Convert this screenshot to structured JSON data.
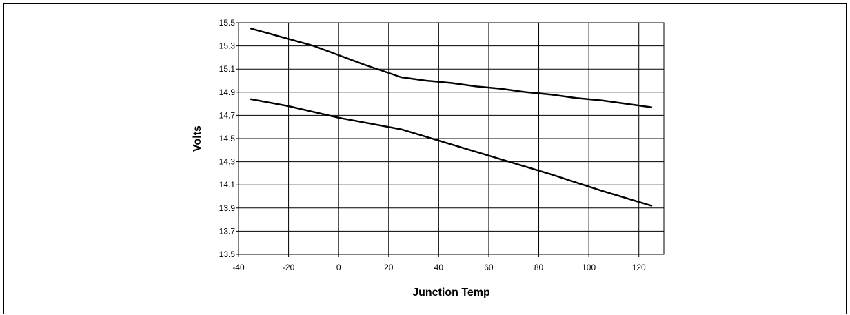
{
  "chart_data": {
    "type": "line",
    "title": "",
    "xlabel": "Junction Temp",
    "ylabel": "Volts",
    "xlim": [
      -40,
      130
    ],
    "ylim": [
      13.5,
      15.5
    ],
    "x_ticks": [
      "-40",
      "-20",
      "0",
      "20",
      "40",
      "60",
      "80",
      "100",
      "120"
    ],
    "y_ticks": [
      "13.5",
      "13.7",
      "13.9",
      "14.1",
      "14.3",
      "14.5",
      "14.7",
      "14.9",
      "15.1",
      "15.3",
      "15.5"
    ],
    "grid": true,
    "legend": false,
    "colors": {
      "line": "#000000",
      "grid": "#000000",
      "background": "#ffffff"
    },
    "series": [
      {
        "x": [
          -35,
          -10,
          0,
          10,
          25,
          35,
          45,
          55,
          65,
          75,
          85,
          95,
          105,
          115,
          125
        ],
        "y": [
          15.45,
          15.3,
          15.22,
          15.14,
          15.03,
          15.0,
          14.98,
          14.95,
          14.93,
          14.9,
          14.88,
          14.85,
          14.83,
          14.8,
          14.77
        ]
      },
      {
        "x": [
          -35,
          -20,
          0,
          25,
          45,
          65,
          85,
          105,
          125
        ],
        "y": [
          14.84,
          14.78,
          14.68,
          14.58,
          14.45,
          14.32,
          14.19,
          14.05,
          13.92
        ]
      }
    ]
  }
}
